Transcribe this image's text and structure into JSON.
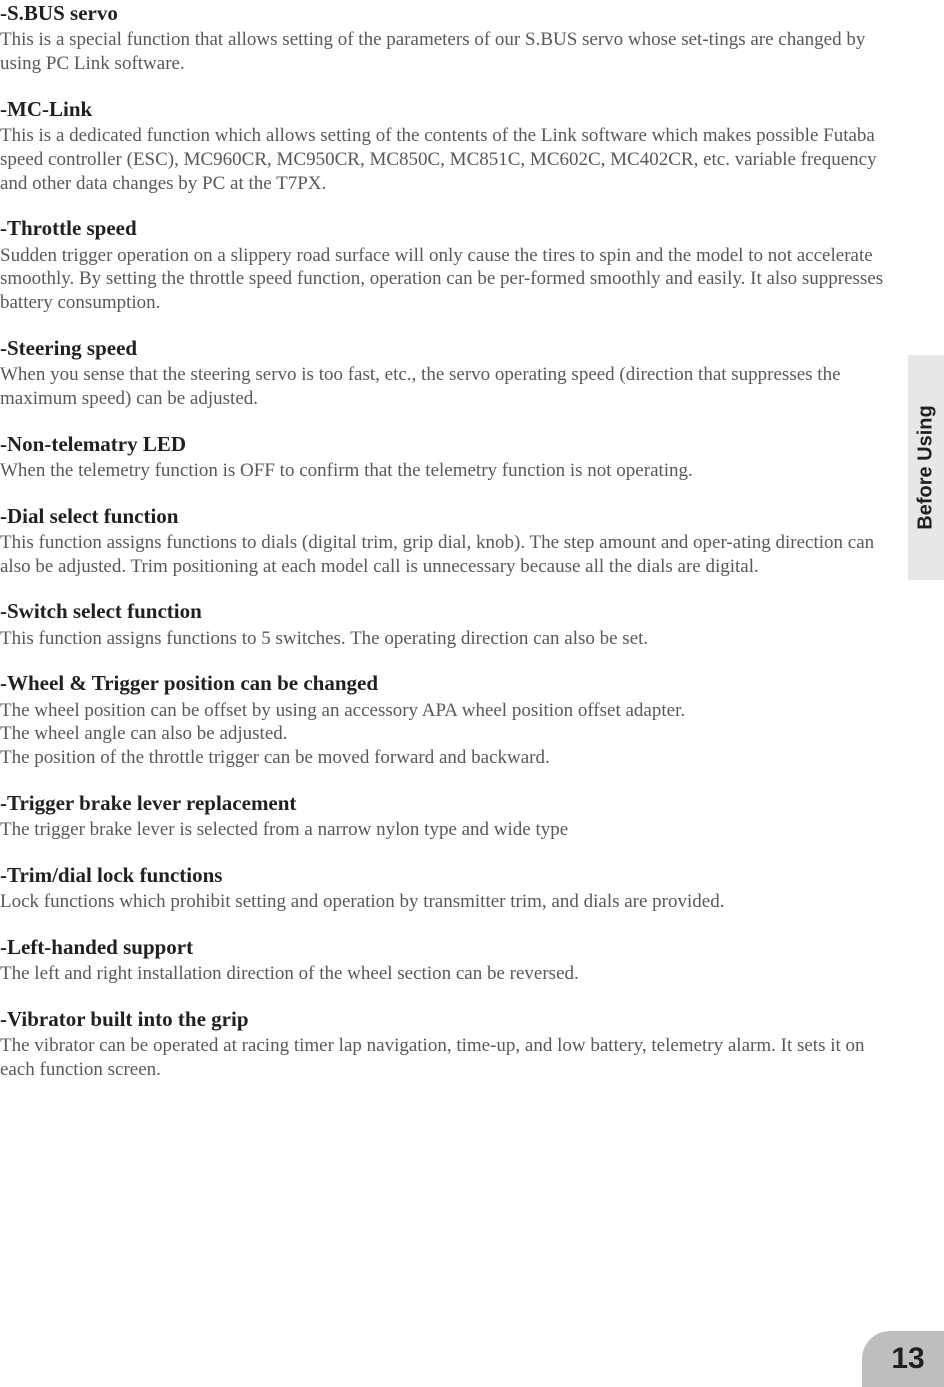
{
  "sideTab": "Before Using",
  "pageNumber": "13",
  "sections": [
    {
      "heading": "-S.BUS servo",
      "body": "This is a special function that allows setting of the parameters of our S.BUS servo whose set-tings are changed by using PC Link software."
    },
    {
      "heading": "-MC-Link",
      "body": "This is a dedicated function which allows setting of the contents of the Link software which makes possible Futaba speed controller (ESC), MC960CR, MC950CR, MC850C, MC851C, MC602C, MC402CR, etc. variable frequency and other data changes by PC at the T7PX."
    },
    {
      "heading": "-Throttle speed",
      "body": "Sudden trigger operation on a slippery road surface will only cause the tires to spin and the model to not accelerate smoothly. By setting the throttle speed function, operation can be per-formed smoothly and easily. It also suppresses battery consumption."
    },
    {
      "heading": "-Steering speed",
      "body": "When you sense that the steering servo is too fast, etc., the servo operating speed (direction that suppresses the maximum speed) can be adjusted."
    },
    {
      "heading": "-Non-telematry LED",
      "body": "When the telemetry function is OFF to confirm that the telemetry function is not operating."
    },
    {
      "heading": "-Dial select function",
      "body": "This function assigns functions to dials (digital trim, grip dial, knob). The step amount and oper-ating direction can also be adjusted. Trim positioning at each model call is unnecessary because all the dials are digital."
    },
    {
      "heading": "-Switch select function",
      "body": "This function assigns functions to 5 switches. The operating direction can also be set."
    },
    {
      "heading": "-Wheel & Trigger position can be changed",
      "body": "The wheel position can be offset by using an accessory APA wheel position offset adapter.\nThe wheel angle can also be adjusted.\nThe position of the throttle trigger can be moved forward and backward."
    },
    {
      "heading": "-Trigger brake lever replacement",
      "body": "The trigger brake lever is selected from a narrow nylon type and wide type"
    },
    {
      "heading": "-Trim/dial lock functions",
      "body": "Lock functions which prohibit setting and operation by transmitter trim, and dials are provided."
    },
    {
      "heading": "-Left-handed support",
      "body": "The left and right installation direction of the wheel section can be reversed."
    },
    {
      "heading": "-Vibrator built into the grip",
      "body": "The vibrator can be operated at racing timer lap navigation, time-up, and low battery, telemetry alarm. It sets it on each function screen."
    }
  ]
}
